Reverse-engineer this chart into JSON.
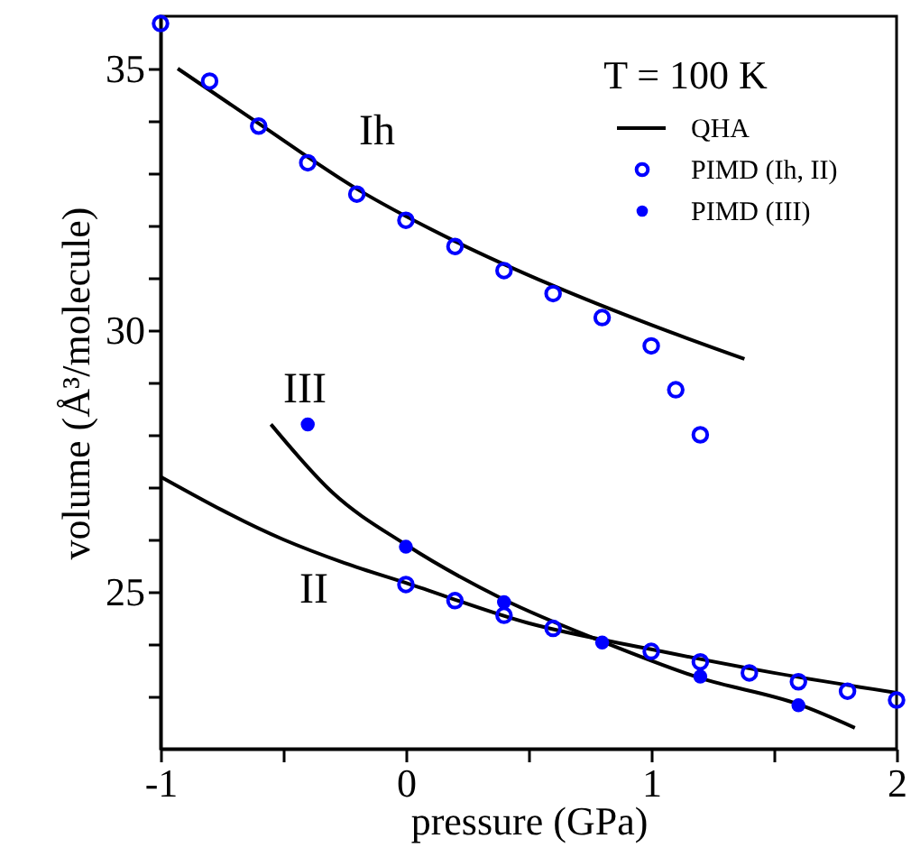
{
  "chart_data": {
    "type": "scatter",
    "xlabel": "pressure (GPa)",
    "ylabel": "volume (Å³/molecule)",
    "legend_title": "T = 100 K",
    "legend": "top right",
    "xlim": [
      -1,
      2
    ],
    "xticks": [
      -1,
      {
        "value": -0.5,
        "label": null
      },
      0,
      {
        "value": 0.5,
        "label": null
      },
      1,
      {
        "value": 1.5,
        "label": null
      },
      2
    ],
    "ylim": [
      22,
      36
    ],
    "yticks": [
      {
        "value": 23,
        "label": null
      },
      {
        "value": 24,
        "label": null
      },
      25,
      {
        "value": 26,
        "label": null
      },
      {
        "value": 27,
        "label": null
      },
      {
        "value": 28,
        "label": null
      },
      {
        "value": 29,
        "label": null
      },
      30,
      {
        "value": 31,
        "label": null
      },
      {
        "value": 32,
        "label": null
      },
      {
        "value": 33,
        "label": null
      },
      {
        "value": 34,
        "label": null
      },
      35
    ],
    "grid": false,
    "series": [
      {
        "name": "QHA",
        "type": "line",
        "color": "#000000",
        "x": [
          -0.93,
          -0.6,
          -0.2,
          0.2,
          0.6,
          1.0,
          1.38
        ],
        "values": [
          35.0,
          33.95,
          32.7,
          31.7,
          30.85,
          30.1,
          29.45
        ]
      },
      {
        "type": "line",
        "color": "#000000",
        "x": [
          -1,
          -0.5,
          -0.25,
          0,
          0.5,
          1.0,
          1.5,
          2.0
        ],
        "values": [
          27.2,
          26.0,
          25.55,
          25.17,
          24.4,
          23.9,
          23.45,
          23.07
        ]
      },
      {
        "type": "line",
        "color": "#000000",
        "x": [
          -0.55,
          -0.3,
          0,
          0.4,
          0.8,
          1.2,
          1.6,
          1.83
        ],
        "values": [
          28.2,
          26.9,
          25.9,
          24.85,
          24.05,
          23.35,
          22.85,
          22.4
        ]
      },
      {
        "name": "PIMD (Ih, II)",
        "marker": "circle",
        "color": "#0000ff",
        "x": [
          -1,
          -0.8,
          -0.6,
          -0.4,
          -0.2,
          0,
          0.2,
          0.4,
          0.6,
          0.8,
          1.0,
          1.1,
          1.2,
          0,
          0.2,
          0.4,
          0.6,
          1.0,
          1.2,
          1.4,
          1.6,
          1.8,
          2.0
        ],
        "values": [
          35.86,
          34.76,
          33.9,
          33.2,
          32.6,
          32.1,
          31.6,
          31.14,
          30.7,
          30.24,
          29.7,
          28.86,
          28.0,
          25.14,
          24.83,
          24.55,
          24.3,
          23.86,
          23.66,
          23.45,
          23.28,
          23.1,
          22.93
        ]
      },
      {
        "name": "PIMD (III)",
        "marker": "circle",
        "color": "#0000ff",
        "x": [
          -0.4,
          0,
          0.4,
          0.8,
          1.2,
          1.6
        ],
        "values": [
          28.2,
          25.86,
          24.8,
          24.03,
          23.38,
          22.83
        ]
      }
    ],
    "annotations": [
      "Ih",
      "III",
      "II"
    ]
  }
}
